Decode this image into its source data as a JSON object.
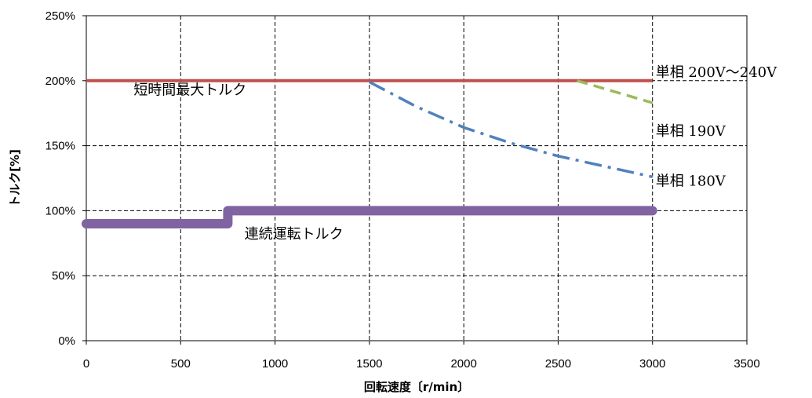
{
  "chart_data": {
    "type": "line",
    "xlabel": "回転速度〔r/min〕",
    "ylabel": "トルク[%]",
    "xlim": [
      0,
      3500
    ],
    "ylim": [
      0,
      250
    ],
    "x_ticks": [
      0,
      500,
      1000,
      1500,
      2000,
      2500,
      3000,
      3500
    ],
    "x_tick_labels": [
      "0",
      "500",
      "1000",
      "1500",
      "2000",
      "2500",
      "3000",
      "3500"
    ],
    "y_ticks": [
      0,
      50,
      100,
      150,
      200,
      250
    ],
    "y_tick_labels": [
      "0%",
      "50%",
      "100%",
      "150%",
      "200%",
      "250%"
    ],
    "grid": true,
    "series": [
      {
        "name": "短時間最大トルク",
        "color": "#c0504d",
        "style": "solid",
        "points": [
          [
            0,
            200
          ],
          [
            3000,
            200
          ]
        ]
      },
      {
        "name": "単相 190V",
        "color": "#9bbb59",
        "style": "dashed",
        "points": [
          [
            2600,
            200
          ],
          [
            3000,
            183
          ]
        ]
      },
      {
        "name": "単相 180V",
        "color": "#4f81bd",
        "style": "dashdot",
        "points": [
          [
            1500,
            199
          ],
          [
            1750,
            180
          ],
          [
            2000,
            164
          ],
          [
            2250,
            152
          ],
          [
            2500,
            142
          ],
          [
            2750,
            134
          ],
          [
            3000,
            126
          ]
        ]
      },
      {
        "name": "連続運転トルク",
        "color": "#8064a2",
        "style": "thick",
        "points": [
          [
            0,
            90
          ],
          [
            750,
            90
          ],
          [
            750,
            100
          ],
          [
            3000,
            100
          ]
        ]
      }
    ],
    "annotations": [
      {
        "text": "単相 200V～240V",
        "x": 3000,
        "y": 200
      },
      {
        "text": "単相 190V",
        "x": 3000,
        "y": 183
      },
      {
        "text": "単相 180V",
        "x": 3000,
        "y": 126
      },
      {
        "text": "短時間最大トルク",
        "x": 550,
        "y": 193
      },
      {
        "text": "連続運転トルク",
        "x": 1100,
        "y": 82
      }
    ]
  }
}
